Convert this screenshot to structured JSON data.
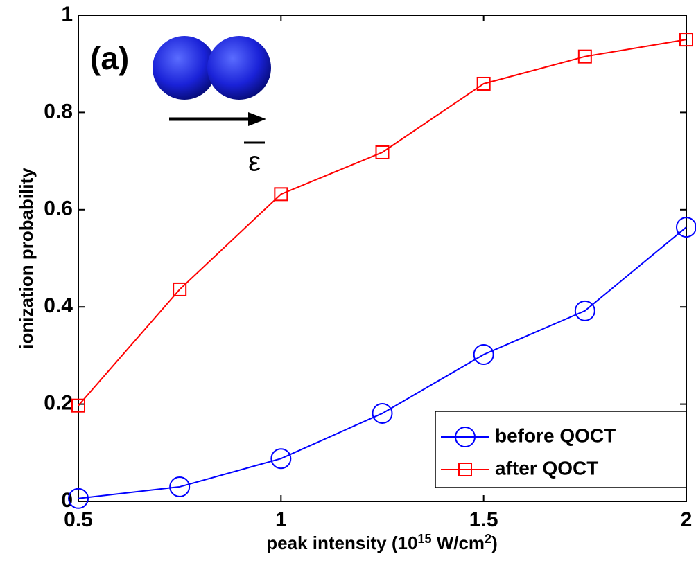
{
  "chart_data": {
    "type": "line",
    "x": [
      0.5,
      0.75,
      1,
      1.25,
      1.5,
      1.75,
      2
    ],
    "series": [
      {
        "name": "before QOCT",
        "color": "#0000ff",
        "marker": "circle",
        "values": [
          0.006,
          0.03,
          0.088,
          0.181,
          0.302,
          0.392,
          0.564
        ]
      },
      {
        "name": "after QOCT",
        "color": "#ff0000",
        "marker": "square",
        "values": [
          0.197,
          0.436,
          0.632,
          0.718,
          0.859,
          0.915,
          0.95
        ]
      }
    ],
    "xlim": [
      0.5,
      2
    ],
    "ylim": [
      0,
      1
    ],
    "xticks": [
      0.5,
      1,
      1.5,
      2
    ],
    "yticks": [
      0,
      0.2,
      0.4,
      0.6,
      0.8,
      1
    ],
    "xlabel": [
      "peak intensity (10",
      "15",
      " W/cm",
      "2",
      ")"
    ],
    "ylabel": "ionization probability",
    "annotation": "(a)",
    "field_symbol": "ε",
    "legend": "lower right"
  }
}
